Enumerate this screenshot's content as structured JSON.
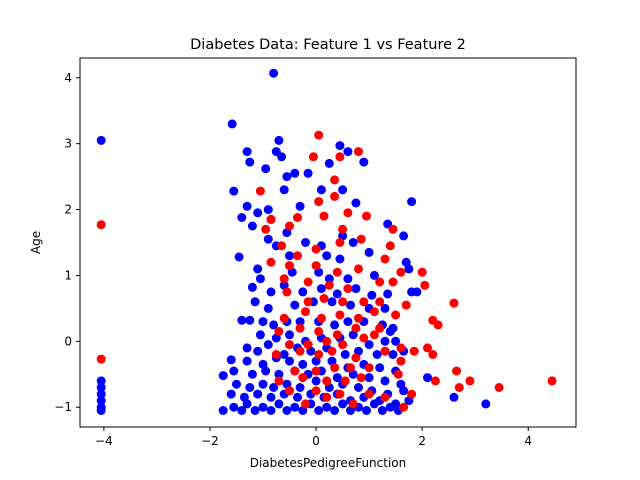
{
  "chart_data": {
    "type": "scatter",
    "title": "Diabetes Data: Feature 1 vs Feature 2",
    "xlabel": "DiabetesPedigreeFunction",
    "ylabel": "Age",
    "xlim": [
      -4.45,
      4.9
    ],
    "ylim": [
      -1.3,
      4.3
    ],
    "xticks": [
      -4,
      -2,
      0,
      2,
      4
    ],
    "yticks": [
      -1,
      0,
      1,
      2,
      3,
      4
    ],
    "grid": false,
    "legend": "none",
    "colors": {
      "class0": "#0000ff",
      "class1": "#ff0000"
    },
    "series": [
      {
        "color": "#0000ff",
        "points": [
          [
            -4.05,
            3.05
          ],
          [
            -0.8,
            4.07
          ],
          [
            -1.58,
            3.3
          ],
          [
            -1.3,
            2.88
          ],
          [
            -1.25,
            2.72
          ],
          [
            -0.95,
            2.62
          ],
          [
            -0.75,
            2.88
          ],
          [
            -0.7,
            3.05
          ],
          [
            -0.65,
            2.8
          ],
          [
            -0.55,
            2.5
          ],
          [
            -0.4,
            2.55
          ],
          [
            -0.15,
            2.55
          ],
          [
            0.25,
            2.7
          ],
          [
            0.45,
            2.97
          ],
          [
            0.6,
            2.88
          ],
          [
            0.9,
            2.72
          ],
          [
            1.8,
            2.12
          ],
          [
            -1.55,
            2.28
          ],
          [
            -1.3,
            2.05
          ],
          [
            -1.1,
            1.95
          ],
          [
            -0.9,
            2.0
          ],
          [
            -0.6,
            2.3
          ],
          [
            -0.3,
            2.05
          ],
          [
            0.1,
            2.3
          ],
          [
            0.5,
            2.3
          ],
          [
            0.75,
            2.1
          ],
          [
            -1.4,
            1.88
          ],
          [
            -1.2,
            1.75
          ],
          [
            -0.85,
            1.85
          ],
          [
            -0.55,
            1.65
          ],
          [
            -0.2,
            1.5
          ],
          [
            0.1,
            1.45
          ],
          [
            0.5,
            1.6
          ],
          [
            0.7,
            1.5
          ],
          [
            1.35,
            1.78
          ],
          [
            1.65,
            1.6
          ],
          [
            -0.9,
            1.55
          ],
          [
            -0.75,
            1.45
          ],
          [
            -0.5,
            1.3
          ],
          [
            0.2,
            1.3
          ],
          [
            0.45,
            1.25
          ],
          [
            1.0,
            1.35
          ],
          [
            1.7,
            1.2
          ],
          [
            -1.45,
            1.28
          ],
          [
            -1.1,
            1.1
          ],
          [
            -1.05,
            0.95
          ],
          [
            -0.45,
            1.05
          ],
          [
            0.05,
            1.05
          ],
          [
            0.25,
            0.95
          ],
          [
            0.6,
            0.95
          ],
          [
            1.1,
            1.0
          ],
          [
            1.75,
            1.1
          ],
          [
            -1.2,
            0.82
          ],
          [
            -0.85,
            0.75
          ],
          [
            -0.6,
            0.85
          ],
          [
            -0.25,
            0.75
          ],
          [
            0.1,
            0.8
          ],
          [
            0.4,
            0.72
          ],
          [
            0.75,
            0.8
          ],
          [
            1.05,
            0.7
          ],
          [
            1.35,
            0.72
          ],
          [
            1.8,
            0.75
          ],
          [
            1.9,
            0.75
          ],
          [
            -1.15,
            0.6
          ],
          [
            -0.9,
            0.5
          ],
          [
            -0.4,
            0.55
          ],
          [
            -0.05,
            0.6
          ],
          [
            0.3,
            0.6
          ],
          [
            0.65,
            0.55
          ],
          [
            1.0,
            0.5
          ],
          [
            1.3,
            0.5
          ],
          [
            -1.4,
            0.32
          ],
          [
            -1.25,
            0.32
          ],
          [
            -1.0,
            0.3
          ],
          [
            -0.8,
            0.25
          ],
          [
            -0.55,
            0.3
          ],
          [
            -0.3,
            0.3
          ],
          [
            0.05,
            0.3
          ],
          [
            0.35,
            0.25
          ],
          [
            0.6,
            0.3
          ],
          [
            0.9,
            0.3
          ],
          [
            1.25,
            0.25
          ],
          [
            1.45,
            0.2
          ],
          [
            1.4,
            0.15
          ],
          [
            -1.05,
            0.1
          ],
          [
            -0.75,
            0.05
          ],
          [
            -0.5,
            0.1
          ],
          [
            -0.2,
            0.0
          ],
          [
            0.1,
            0.05
          ],
          [
            0.45,
            0.05
          ],
          [
            0.7,
            0.1
          ],
          [
            1.0,
            -0.05
          ],
          [
            1.3,
            0.0
          ],
          [
            1.5,
            0.0
          ],
          [
            -1.3,
            -0.1
          ],
          [
            -1.1,
            -0.15
          ],
          [
            -0.9,
            -0.05
          ],
          [
            -0.6,
            -0.2
          ],
          [
            -0.35,
            -0.1
          ],
          [
            -0.1,
            -0.15
          ],
          [
            0.2,
            -0.1
          ],
          [
            0.55,
            -0.2
          ],
          [
            0.8,
            -0.15
          ],
          [
            1.15,
            -0.2
          ],
          [
            1.45,
            -0.2
          ],
          [
            1.65,
            -0.15
          ],
          [
            -1.6,
            -0.28
          ],
          [
            -1.3,
            -0.3
          ],
          [
            -1.0,
            -0.35
          ],
          [
            -0.75,
            -0.25
          ],
          [
            -0.5,
            -0.3
          ],
          [
            -0.25,
            -0.35
          ],
          [
            0.0,
            -0.3
          ],
          [
            0.3,
            -0.3
          ],
          [
            0.6,
            -0.4
          ],
          [
            0.9,
            -0.35
          ],
          [
            1.2,
            -0.4
          ],
          [
            1.5,
            -0.45
          ],
          [
            -1.55,
            -0.45
          ],
          [
            -1.2,
            -0.5
          ],
          [
            -0.95,
            -0.45
          ],
          [
            -0.7,
            -0.5
          ],
          [
            -0.4,
            -0.45
          ],
          [
            -0.15,
            -0.5
          ],
          [
            0.1,
            -0.45
          ],
          [
            0.4,
            -0.55
          ],
          [
            0.7,
            -0.5
          ],
          [
            1.0,
            -0.55
          ],
          [
            1.3,
            -0.6
          ],
          [
            1.6,
            -0.65
          ],
          [
            2.1,
            -0.55
          ],
          [
            -4.05,
            -0.6
          ],
          [
            -4.05,
            -0.7
          ],
          [
            -1.75,
            -0.52
          ],
          [
            -1.5,
            -0.65
          ],
          [
            -1.25,
            -0.7
          ],
          [
            -1.0,
            -0.65
          ],
          [
            -0.8,
            -0.7
          ],
          [
            -0.55,
            -0.65
          ],
          [
            -0.3,
            -0.7
          ],
          [
            0.0,
            -0.6
          ],
          [
            0.25,
            -0.7
          ],
          [
            0.5,
            -0.65
          ],
          [
            0.8,
            -0.7
          ],
          [
            1.05,
            -0.75
          ],
          [
            1.35,
            -0.8
          ],
          [
            1.65,
            -0.75
          ],
          [
            -4.05,
            -0.8
          ],
          [
            -4.05,
            -0.9
          ],
          [
            -1.6,
            -0.8
          ],
          [
            -1.35,
            -0.85
          ],
          [
            -1.1,
            -0.8
          ],
          [
            -0.85,
            -0.85
          ],
          [
            -0.6,
            -0.8
          ],
          [
            -0.35,
            -0.85
          ],
          [
            -0.1,
            -0.8
          ],
          [
            0.15,
            -0.85
          ],
          [
            0.4,
            -0.8
          ],
          [
            0.65,
            -0.9
          ],
          [
            0.9,
            -0.85
          ],
          [
            1.2,
            -0.9
          ],
          [
            1.5,
            -0.95
          ],
          [
            1.75,
            -0.9
          ],
          [
            2.6,
            -0.85
          ],
          [
            3.2,
            -0.95
          ],
          [
            -4.05,
            -1.0
          ],
          [
            -4.05,
            -1.05
          ],
          [
            -1.75,
            -1.05
          ],
          [
            -1.55,
            -1.0
          ],
          [
            -1.4,
            -1.05
          ],
          [
            -1.3,
            -0.95
          ],
          [
            -1.15,
            -1.05
          ],
          [
            -1.0,
            -1.0
          ],
          [
            -0.85,
            -1.05
          ],
          [
            -0.7,
            -0.95
          ],
          [
            -0.55,
            -1.05
          ],
          [
            -0.4,
            -1.0
          ],
          [
            -0.25,
            -1.05
          ],
          [
            -0.1,
            -0.95
          ],
          [
            0.05,
            -1.05
          ],
          [
            0.2,
            -1.0
          ],
          [
            0.35,
            -1.05
          ],
          [
            0.5,
            -0.95
          ],
          [
            0.65,
            -1.05
          ],
          [
            0.8,
            -1.0
          ],
          [
            0.95,
            -1.05
          ],
          [
            1.1,
            -0.95
          ],
          [
            1.25,
            -1.05
          ],
          [
            1.4,
            -1.0
          ],
          [
            1.55,
            -1.05
          ]
        ]
      },
      {
        "color": "#ff0000",
        "points": [
          [
            0.05,
            3.13
          ],
          [
            0.8,
            2.88
          ],
          [
            0.45,
            2.8
          ],
          [
            -0.05,
            2.8
          ],
          [
            0.35,
            2.45
          ],
          [
            -1.05,
            2.28
          ],
          [
            0.05,
            2.12
          ],
          [
            0.35,
            2.2
          ],
          [
            0.6,
            1.95
          ],
          [
            -0.85,
            1.85
          ],
          [
            -0.35,
            1.88
          ],
          [
            0.15,
            1.9
          ],
          [
            0.95,
            1.9
          ],
          [
            1.45,
            1.7
          ],
          [
            -0.95,
            1.7
          ],
          [
            -0.5,
            1.75
          ],
          [
            0.5,
            1.7
          ],
          [
            -0.65,
            1.45
          ],
          [
            -0.35,
            1.3
          ],
          [
            0.0,
            1.4
          ],
          [
            0.45,
            1.5
          ],
          [
            0.85,
            1.55
          ],
          [
            1.4,
            1.45
          ],
          [
            -0.85,
            1.2
          ],
          [
            -0.5,
            1.15
          ],
          [
            0.0,
            1.15
          ],
          [
            0.4,
            1.05
          ],
          [
            0.8,
            1.1
          ],
          [
            1.3,
            1.25
          ],
          [
            1.6,
            1.05
          ],
          [
            2.0,
            1.05
          ],
          [
            -0.6,
            0.95
          ],
          [
            -0.15,
            0.9
          ],
          [
            0.25,
            0.85
          ],
          [
            0.6,
            0.8
          ],
          [
            1.2,
            0.9
          ],
          [
            1.45,
            0.9
          ],
          [
            2.05,
            0.85
          ],
          [
            -0.55,
            0.75
          ],
          [
            -0.15,
            0.6
          ],
          [
            0.15,
            0.65
          ],
          [
            0.5,
            0.6
          ],
          [
            0.9,
            0.6
          ],
          [
            1.2,
            0.6
          ],
          [
            1.7,
            0.55
          ],
          [
            2.6,
            0.58
          ],
          [
            -0.6,
            0.35
          ],
          [
            -0.2,
            0.45
          ],
          [
            0.1,
            0.35
          ],
          [
            0.45,
            0.4
          ],
          [
            0.8,
            0.35
          ],
          [
            1.1,
            0.45
          ],
          [
            1.5,
            0.4
          ],
          [
            2.2,
            0.32
          ],
          [
            -0.7,
            0.15
          ],
          [
            -0.3,
            0.2
          ],
          [
            0.05,
            0.15
          ],
          [
            0.4,
            0.1
          ],
          [
            0.75,
            0.2
          ],
          [
            1.2,
            0.2
          ],
          [
            2.3,
            0.25
          ],
          [
            -0.5,
            -0.05
          ],
          [
            -0.15,
            -0.05
          ],
          [
            0.2,
            0.0
          ],
          [
            0.5,
            -0.05
          ],
          [
            0.9,
            0.05
          ],
          [
            1.1,
            0.1
          ],
          [
            1.6,
            -0.1
          ],
          [
            2.1,
            -0.1
          ],
          [
            -0.75,
            -0.2
          ],
          [
            -0.3,
            -0.15
          ],
          [
            0.05,
            -0.2
          ],
          [
            0.3,
            -0.15
          ],
          [
            0.75,
            -0.25
          ],
          [
            1.3,
            -0.15
          ],
          [
            1.85,
            -0.15
          ],
          [
            2.2,
            -0.2
          ],
          [
            -0.4,
            -0.45
          ],
          [
            0.0,
            -0.45
          ],
          [
            0.35,
            -0.4
          ],
          [
            0.65,
            -0.4
          ],
          [
            1.0,
            -0.4
          ],
          [
            1.6,
            -0.3
          ],
          [
            2.65,
            -0.45
          ],
          [
            -0.7,
            -0.6
          ],
          [
            -0.25,
            -0.55
          ],
          [
            0.2,
            -0.6
          ],
          [
            0.55,
            -0.6
          ],
          [
            0.85,
            -0.55
          ],
          [
            1.55,
            -0.5
          ],
          [
            2.25,
            -0.6
          ],
          [
            2.9,
            -0.6
          ],
          [
            4.45,
            -0.6
          ],
          [
            -0.5,
            -0.75
          ],
          [
            0.0,
            -0.75
          ],
          [
            0.45,
            -0.8
          ],
          [
            1.0,
            -0.8
          ],
          [
            1.8,
            -0.8
          ],
          [
            2.7,
            -0.7
          ],
          [
            3.45,
            -0.7
          ],
          [
            -0.2,
            -0.95
          ],
          [
            0.2,
            -0.85
          ],
          [
            0.7,
            -0.95
          ],
          [
            1.3,
            -0.85
          ],
          [
            1.65,
            -1.0
          ],
          [
            -4.05,
            1.77
          ],
          [
            -4.05,
            -0.27
          ]
        ]
      }
    ]
  }
}
